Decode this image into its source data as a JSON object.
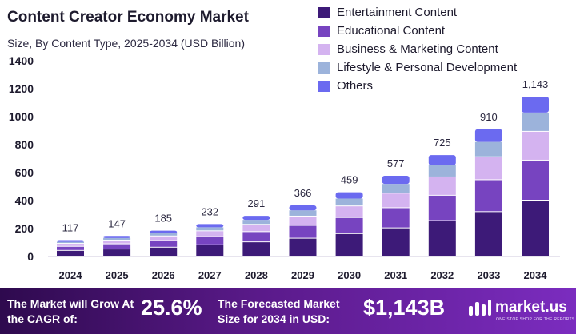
{
  "chart_data": {
    "type": "bar",
    "stacked": true,
    "title": "Content Creator Economy Market",
    "subtitle": "Size, By Content Type, 2025-2034 (USD Billion)",
    "categories": [
      "2024",
      "2025",
      "2026",
      "2027",
      "2028",
      "2029",
      "2030",
      "2031",
      "2032",
      "2033",
      "2034"
    ],
    "totals": [
      "117",
      "147",
      "185",
      "232",
      "291",
      "366",
      "459",
      "577",
      "725",
      "910",
      "1,143"
    ],
    "total_values": [
      117,
      147,
      185,
      232,
      291,
      366,
      459,
      577,
      725,
      910,
      1143
    ],
    "series": [
      {
        "name": "Entertainment Content",
        "color": "#3d1a78",
        "values": [
          41,
          51,
          64,
          81,
          102,
          128,
          161,
          202,
          254,
          318,
          400
        ]
      },
      {
        "name": "Educational Content",
        "color": "#7744c0",
        "values": [
          29,
          37,
          47,
          58,
          73,
          92,
          115,
          144,
          181,
          228,
          286
        ]
      },
      {
        "name": "Business & Marketing Content",
        "color": "#d4b3f0",
        "values": [
          21,
          26,
          33,
          42,
          52,
          66,
          83,
          104,
          131,
          164,
          206
        ]
      },
      {
        "name": "Lifestyle & Personal Development",
        "color": "#9cb3db",
        "values": [
          14,
          18,
          22,
          28,
          35,
          44,
          55,
          69,
          87,
          109,
          137
        ]
      },
      {
        "name": "Others",
        "color": "#6b6af0",
        "values": [
          12,
          15,
          19,
          23,
          29,
          36,
          45,
          58,
          72,
          91,
          114
        ]
      }
    ],
    "yticks": [
      "0",
      "200",
      "400",
      "600",
      "800",
      "1000",
      "1200",
      "1400"
    ],
    "ylim": [
      0,
      1400
    ],
    "grid": false,
    "legend_position": "top-right"
  },
  "footer": {
    "cagr_label": "The Market will Grow At the CAGR of:",
    "cagr_value": "25.6%",
    "forecast_label": "The Forecasted Market Size for 2034 in USD:",
    "forecast_value": "$1,143B",
    "brand": "market.us",
    "brand_tagline": "ONE STOP SHOP FOR THE REPORTS"
  }
}
